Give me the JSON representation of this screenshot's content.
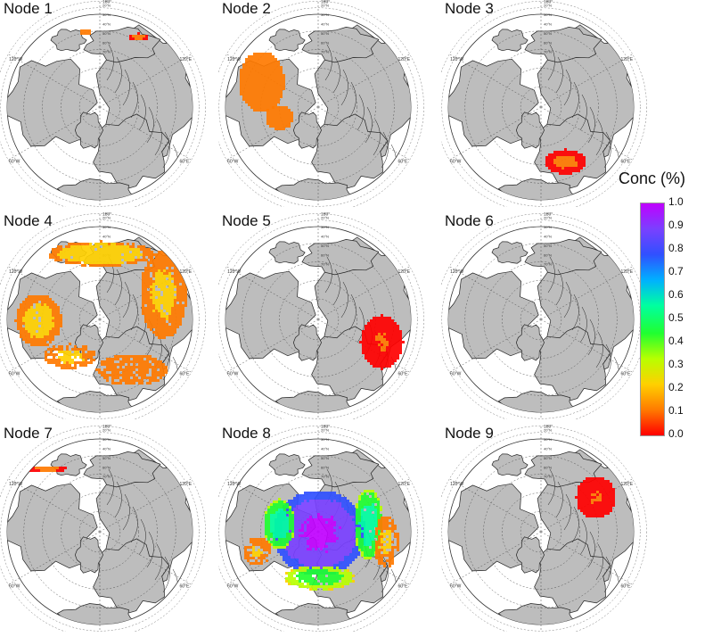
{
  "panels": [
    {
      "title": "Node 1",
      "pattern": "n1"
    },
    {
      "title": "Node 2",
      "pattern": "n2"
    },
    {
      "title": "Node 3",
      "pattern": "n3"
    },
    {
      "title": "Node 4",
      "pattern": "n4"
    },
    {
      "title": "Node 5",
      "pattern": "n5"
    },
    {
      "title": "Node 6",
      "pattern": "n6"
    },
    {
      "title": "Node 7",
      "pattern": "n7"
    },
    {
      "title": "Node 8",
      "pattern": "n8"
    },
    {
      "title": "Node 9",
      "pattern": "n9"
    }
  ],
  "map_labels": {
    "top": "180°",
    "left_upper": "120°W",
    "right_upper": "120°E",
    "left_lower": "60°W",
    "right_lower": "60°E",
    "lat": [
      "20°N",
      "30°N",
      "40°N",
      "50°N",
      "60°N",
      "70°N"
    ]
  },
  "colorbar": {
    "title": "Conc (%)",
    "ticks": [
      "1.0",
      "0.9",
      "0.8",
      "0.7",
      "0.6",
      "0.5",
      "0.4",
      "0.3",
      "0.2",
      "0.1",
      "0.0"
    ],
    "colors": [
      "#ff0000",
      "#ff7a00",
      "#ffd000",
      "#b8ff00",
      "#20ff30",
      "#00ffa0",
      "#00b0ff",
      "#3050ff",
      "#7a40ff",
      "#c000ff"
    ]
  },
  "colors": {
    "land": "#bdbdbd",
    "ocean": "#ffffff",
    "grid": "#555555"
  }
}
